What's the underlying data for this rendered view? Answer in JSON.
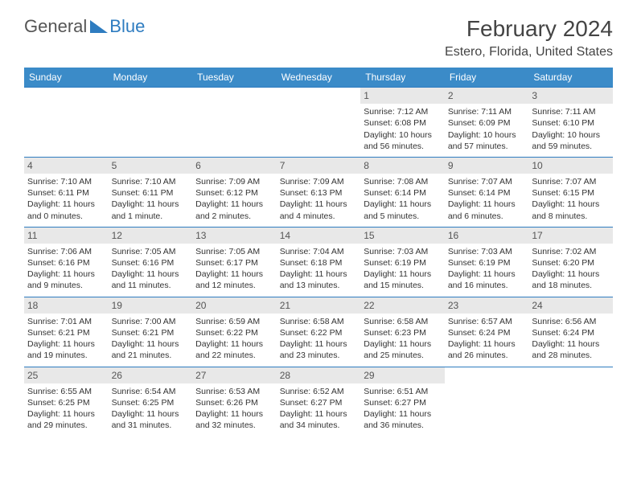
{
  "logo": {
    "text1": "General",
    "text2": "Blue"
  },
  "title": "February 2024",
  "location": "Estero, Florida, United States",
  "colors": {
    "header_bg": "#3b8bc8",
    "header_text": "#ffffff",
    "border": "#2e7cc0",
    "date_bg": "#e8e8e8",
    "text": "#333333"
  },
  "days": [
    "Sunday",
    "Monday",
    "Tuesday",
    "Wednesday",
    "Thursday",
    "Friday",
    "Saturday"
  ],
  "weeks": [
    [
      {
        "empty": true
      },
      {
        "empty": true
      },
      {
        "empty": true
      },
      {
        "empty": true
      },
      {
        "date": "1",
        "sunrise": "Sunrise: 7:12 AM",
        "sunset": "Sunset: 6:08 PM",
        "daylight1": "Daylight: 10 hours",
        "daylight2": "and 56 minutes."
      },
      {
        "date": "2",
        "sunrise": "Sunrise: 7:11 AM",
        "sunset": "Sunset: 6:09 PM",
        "daylight1": "Daylight: 10 hours",
        "daylight2": "and 57 minutes."
      },
      {
        "date": "3",
        "sunrise": "Sunrise: 7:11 AM",
        "sunset": "Sunset: 6:10 PM",
        "daylight1": "Daylight: 10 hours",
        "daylight2": "and 59 minutes."
      }
    ],
    [
      {
        "date": "4",
        "sunrise": "Sunrise: 7:10 AM",
        "sunset": "Sunset: 6:11 PM",
        "daylight1": "Daylight: 11 hours",
        "daylight2": "and 0 minutes."
      },
      {
        "date": "5",
        "sunrise": "Sunrise: 7:10 AM",
        "sunset": "Sunset: 6:11 PM",
        "daylight1": "Daylight: 11 hours",
        "daylight2": "and 1 minute."
      },
      {
        "date": "6",
        "sunrise": "Sunrise: 7:09 AM",
        "sunset": "Sunset: 6:12 PM",
        "daylight1": "Daylight: 11 hours",
        "daylight2": "and 2 minutes."
      },
      {
        "date": "7",
        "sunrise": "Sunrise: 7:09 AM",
        "sunset": "Sunset: 6:13 PM",
        "daylight1": "Daylight: 11 hours",
        "daylight2": "and 4 minutes."
      },
      {
        "date": "8",
        "sunrise": "Sunrise: 7:08 AM",
        "sunset": "Sunset: 6:14 PM",
        "daylight1": "Daylight: 11 hours",
        "daylight2": "and 5 minutes."
      },
      {
        "date": "9",
        "sunrise": "Sunrise: 7:07 AM",
        "sunset": "Sunset: 6:14 PM",
        "daylight1": "Daylight: 11 hours",
        "daylight2": "and 6 minutes."
      },
      {
        "date": "10",
        "sunrise": "Sunrise: 7:07 AM",
        "sunset": "Sunset: 6:15 PM",
        "daylight1": "Daylight: 11 hours",
        "daylight2": "and 8 minutes."
      }
    ],
    [
      {
        "date": "11",
        "sunrise": "Sunrise: 7:06 AM",
        "sunset": "Sunset: 6:16 PM",
        "daylight1": "Daylight: 11 hours",
        "daylight2": "and 9 minutes."
      },
      {
        "date": "12",
        "sunrise": "Sunrise: 7:05 AM",
        "sunset": "Sunset: 6:16 PM",
        "daylight1": "Daylight: 11 hours",
        "daylight2": "and 11 minutes."
      },
      {
        "date": "13",
        "sunrise": "Sunrise: 7:05 AM",
        "sunset": "Sunset: 6:17 PM",
        "daylight1": "Daylight: 11 hours",
        "daylight2": "and 12 minutes."
      },
      {
        "date": "14",
        "sunrise": "Sunrise: 7:04 AM",
        "sunset": "Sunset: 6:18 PM",
        "daylight1": "Daylight: 11 hours",
        "daylight2": "and 13 minutes."
      },
      {
        "date": "15",
        "sunrise": "Sunrise: 7:03 AM",
        "sunset": "Sunset: 6:19 PM",
        "daylight1": "Daylight: 11 hours",
        "daylight2": "and 15 minutes."
      },
      {
        "date": "16",
        "sunrise": "Sunrise: 7:03 AM",
        "sunset": "Sunset: 6:19 PM",
        "daylight1": "Daylight: 11 hours",
        "daylight2": "and 16 minutes."
      },
      {
        "date": "17",
        "sunrise": "Sunrise: 7:02 AM",
        "sunset": "Sunset: 6:20 PM",
        "daylight1": "Daylight: 11 hours",
        "daylight2": "and 18 minutes."
      }
    ],
    [
      {
        "date": "18",
        "sunrise": "Sunrise: 7:01 AM",
        "sunset": "Sunset: 6:21 PM",
        "daylight1": "Daylight: 11 hours",
        "daylight2": "and 19 minutes."
      },
      {
        "date": "19",
        "sunrise": "Sunrise: 7:00 AM",
        "sunset": "Sunset: 6:21 PM",
        "daylight1": "Daylight: 11 hours",
        "daylight2": "and 21 minutes."
      },
      {
        "date": "20",
        "sunrise": "Sunrise: 6:59 AM",
        "sunset": "Sunset: 6:22 PM",
        "daylight1": "Daylight: 11 hours",
        "daylight2": "and 22 minutes."
      },
      {
        "date": "21",
        "sunrise": "Sunrise: 6:58 AM",
        "sunset": "Sunset: 6:22 PM",
        "daylight1": "Daylight: 11 hours",
        "daylight2": "and 23 minutes."
      },
      {
        "date": "22",
        "sunrise": "Sunrise: 6:58 AM",
        "sunset": "Sunset: 6:23 PM",
        "daylight1": "Daylight: 11 hours",
        "daylight2": "and 25 minutes."
      },
      {
        "date": "23",
        "sunrise": "Sunrise: 6:57 AM",
        "sunset": "Sunset: 6:24 PM",
        "daylight1": "Daylight: 11 hours",
        "daylight2": "and 26 minutes."
      },
      {
        "date": "24",
        "sunrise": "Sunrise: 6:56 AM",
        "sunset": "Sunset: 6:24 PM",
        "daylight1": "Daylight: 11 hours",
        "daylight2": "and 28 minutes."
      }
    ],
    [
      {
        "date": "25",
        "sunrise": "Sunrise: 6:55 AM",
        "sunset": "Sunset: 6:25 PM",
        "daylight1": "Daylight: 11 hours",
        "daylight2": "and 29 minutes."
      },
      {
        "date": "26",
        "sunrise": "Sunrise: 6:54 AM",
        "sunset": "Sunset: 6:25 PM",
        "daylight1": "Daylight: 11 hours",
        "daylight2": "and 31 minutes."
      },
      {
        "date": "27",
        "sunrise": "Sunrise: 6:53 AM",
        "sunset": "Sunset: 6:26 PM",
        "daylight1": "Daylight: 11 hours",
        "daylight2": "and 32 minutes."
      },
      {
        "date": "28",
        "sunrise": "Sunrise: 6:52 AM",
        "sunset": "Sunset: 6:27 PM",
        "daylight1": "Daylight: 11 hours",
        "daylight2": "and 34 minutes."
      },
      {
        "date": "29",
        "sunrise": "Sunrise: 6:51 AM",
        "sunset": "Sunset: 6:27 PM",
        "daylight1": "Daylight: 11 hours",
        "daylight2": "and 36 minutes."
      },
      {
        "empty": true
      },
      {
        "empty": true
      }
    ]
  ]
}
